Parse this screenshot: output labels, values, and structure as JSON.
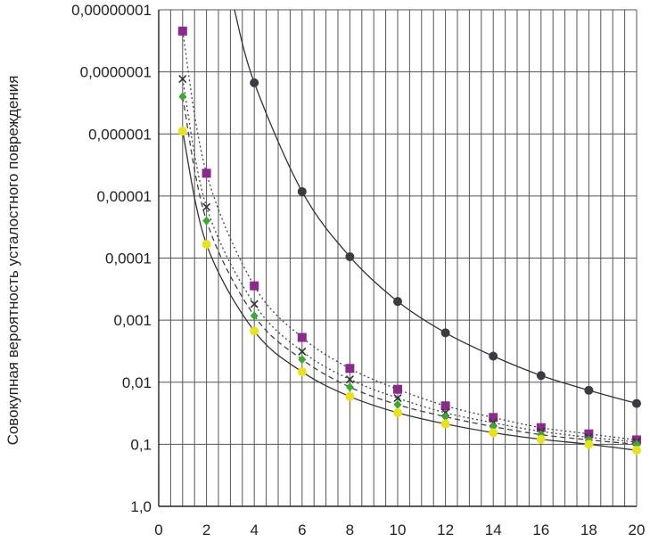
{
  "chart_data": {
    "type": "line",
    "title": "",
    "xlabel": "",
    "ylabel": "Совокупная вероятность усталостного повреждения",
    "y_scale": "log",
    "y_inverted": true,
    "xlim": [
      0,
      20
    ],
    "ylim": [
      1.0,
      1e-08
    ],
    "grid": true,
    "x_ticks": [
      "0",
      "2",
      "4",
      "6",
      "8",
      "10",
      "12",
      "14",
      "16",
      "18",
      "20"
    ],
    "y_ticks": [
      "1,0",
      "0,1",
      "0,01",
      "0,001",
      "0,0001",
      "0,00001",
      "0,000001",
      "0,0000001",
      "0,00000001"
    ],
    "series": [
      {
        "color": "#3b3b44",
        "marker": "circle",
        "line": "solid",
        "x": [
          4,
          6,
          8,
          10,
          12,
          14,
          16,
          18,
          20
        ],
        "y": [
          1.5e-07,
          8.5e-06,
          9.5e-05,
          0.0005,
          0.0016,
          0.0038,
          0.0078,
          0.0135,
          0.022
        ],
        "curve_extends_to_y": 1e-08
      },
      {
        "color": "#8b2a8b",
        "marker": "square",
        "line": "dotted",
        "x": [
          1,
          2,
          4,
          6,
          8,
          10,
          12,
          14,
          16,
          18,
          20
        ],
        "y": [
          2.2e-08,
          4.3e-06,
          0.00028,
          0.0019,
          0.006,
          0.013,
          0.024,
          0.037,
          0.054,
          0.068,
          0.085
        ]
      },
      {
        "color": "#333333",
        "marker": "x",
        "line": "dotted",
        "x": [
          1,
          2,
          4,
          6,
          8,
          10,
          12,
          14,
          16,
          18,
          20
        ],
        "y": [
          1.3e-07,
          1.5e-05,
          0.00055,
          0.0032,
          0.009,
          0.018,
          0.031,
          0.045,
          0.062,
          0.077,
          0.092
        ]
      },
      {
        "color": "#3aaa35",
        "marker": "diamond",
        "line": "dashed",
        "x": [
          1,
          2,
          4,
          6,
          8,
          10,
          12,
          14,
          16,
          18,
          20
        ],
        "y": [
          2.5e-07,
          2.5e-05,
          0.00085,
          0.0043,
          0.012,
          0.023,
          0.036,
          0.052,
          0.07,
          0.085,
          0.1
        ]
      },
      {
        "color": "#e9e020",
        "marker": "circle",
        "line": "solid",
        "x": [
          1,
          2,
          4,
          6,
          8,
          10,
          12,
          14,
          16,
          18,
          20
        ],
        "y": [
          9e-07,
          6e-05,
          0.0015,
          0.0068,
          0.017,
          0.031,
          0.047,
          0.065,
          0.083,
          0.1,
          0.125
        ]
      }
    ]
  }
}
